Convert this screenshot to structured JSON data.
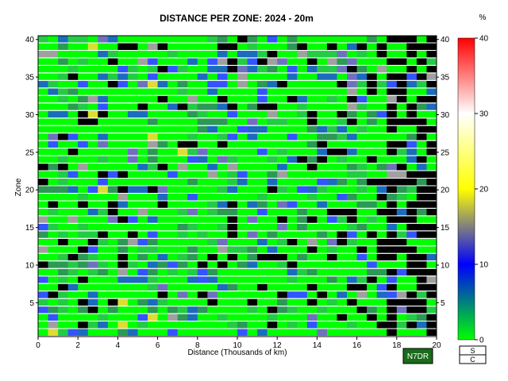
{
  "chart_data": {
    "type": "heatmap",
    "title": "DISTANCE PER ZONE: 2024 - 20m",
    "xlabel": "Distance (Thousands of km)",
    "ylabel": "Zone",
    "xlim": [
      0,
      20
    ],
    "ylim": [
      1,
      40
    ],
    "x_ticks": [
      "0",
      "2",
      "4",
      "6",
      "8",
      "10",
      "12",
      "14",
      "16",
      "18",
      "20"
    ],
    "y_ticks": [
      "5",
      "10",
      "15",
      "20",
      "25",
      "30",
      "35",
      "40"
    ],
    "colorbar": {
      "unit": "%",
      "ticks": [
        "0",
        "10",
        "20",
        "30",
        "40"
      ],
      "range": [
        0,
        40
      ],
      "stops": [
        "#00ff00",
        "#0000ff",
        "#ffff00",
        "#ffffff",
        "#ff0000"
      ]
    },
    "no_data_color": "#000000",
    "grid": false,
    "callsign": "N7DR",
    "legend_box": [
      "S",
      "C"
    ]
  },
  "colors": {
    "badge_bg": "#1a6b1a",
    "badge_border": "#000000"
  }
}
